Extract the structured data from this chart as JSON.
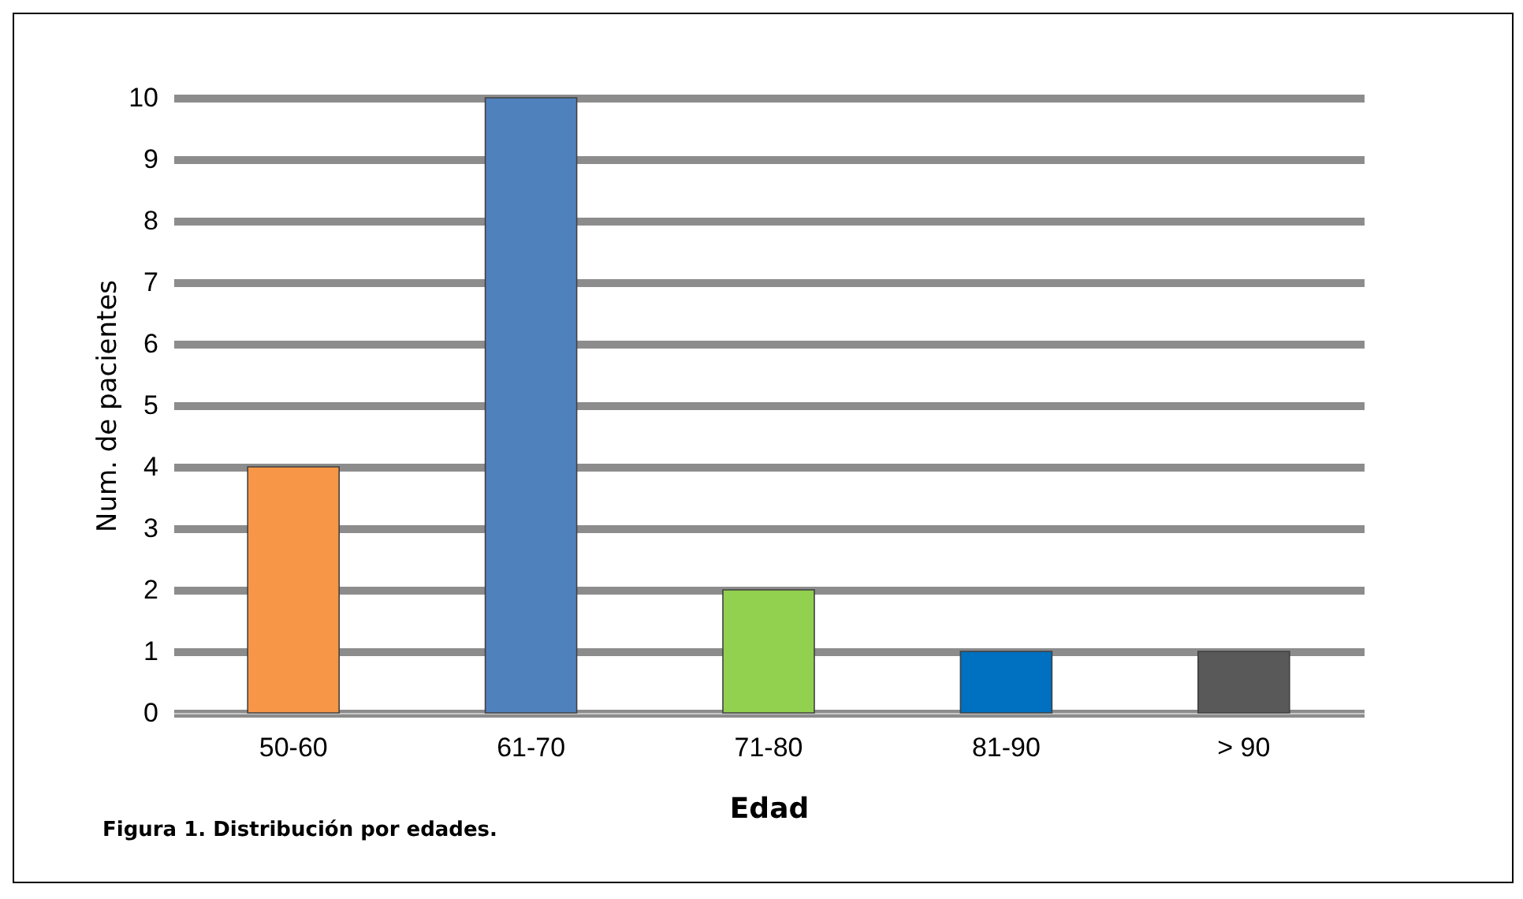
{
  "chart_data": {
    "type": "bar",
    "xlabel": "Edad",
    "ylabel": "Num. de pacientes",
    "annotations": [
      "Figura 1. Distribución por edades."
    ],
    "categories": [
      "50-60",
      "61-70",
      "71-80",
      "81-90",
      "> 90"
    ],
    "values": [
      4,
      10,
      2,
      1,
      1
    ],
    "colors": [
      "#f79646",
      "#4f81bd",
      "#92d050",
      "#0070c0",
      "#595959"
    ],
    "ylim": [
      0,
      10
    ],
    "yticks": [
      0,
      1,
      2,
      3,
      4,
      5,
      6,
      7,
      8,
      9,
      10
    ],
    "grid": "y"
  }
}
